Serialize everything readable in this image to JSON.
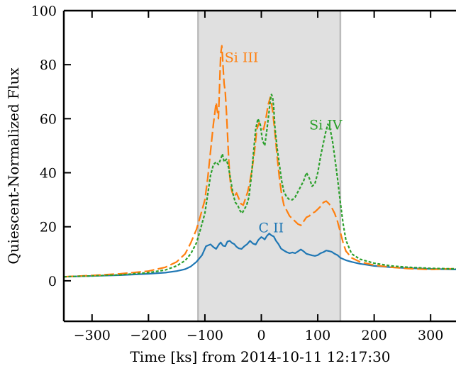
{
  "chart_data": {
    "type": "line",
    "title": "",
    "xlabel": "Time [ks] from 2014-10-11 12:17:30",
    "ylabel": "Quiescent-Normalized Flux",
    "xlim": [
      -350,
      345
    ],
    "ylim": [
      -15,
      100
    ],
    "xticks": [
      -300,
      -200,
      -100,
      0,
      100,
      200,
      300
    ],
    "xtick_labels": [
      "−300",
      "−200",
      "−100",
      "0",
      "100",
      "200",
      "300"
    ],
    "yticks": [
      0,
      20,
      40,
      60,
      80,
      100
    ],
    "ytick_labels": [
      "0",
      "20",
      "40",
      "60",
      "80",
      "100"
    ],
    "grid": false,
    "legend": "none",
    "shaded_region": {
      "x0": -112,
      "x1": 140,
      "color": "#e0e0e0",
      "edge_color": "#bbbbbb"
    },
    "series": [
      {
        "name": "C II",
        "color": "#1f77b4",
        "style": "solid",
        "label_at": [
          -5,
          18
        ],
        "x": [
          -350,
          -300,
          -250,
          -200,
          -170,
          -150,
          -135,
          -125,
          -115,
          -105,
          -98,
          -90,
          -85,
          -80,
          -75,
          -72,
          -68,
          -64,
          -60,
          -56,
          -52,
          -48,
          -44,
          -40,
          -35,
          -30,
          -25,
          -20,
          -15,
          -10,
          -5,
          0,
          3,
          6,
          10,
          14,
          18,
          22,
          26,
          30,
          35,
          40,
          45,
          50,
          55,
          60,
          65,
          70,
          75,
          80,
          85,
          90,
          95,
          100,
          105,
          110,
          115,
          120,
          125,
          130,
          135,
          140,
          150,
          160,
          175,
          200,
          230,
          260,
          300,
          345
        ],
        "y": [
          1.5,
          1.8,
          2.1,
          2.6,
          3.0,
          3.6,
          4.3,
          5.3,
          7.0,
          9.5,
          12.8,
          13.5,
          12.5,
          11.8,
          13.5,
          14.2,
          13.0,
          12.8,
          14.5,
          14.8,
          14.0,
          13.6,
          12.6,
          12.0,
          11.8,
          12.8,
          13.6,
          14.8,
          13.8,
          13.4,
          15.2,
          16.2,
          15.8,
          15.3,
          16.6,
          17.5,
          16.8,
          16.4,
          14.8,
          13.7,
          11.9,
          11.2,
          10.6,
          10.2,
          10.5,
          10.2,
          10.9,
          11.6,
          10.9,
          10.0,
          9.7,
          9.4,
          9.2,
          9.5,
          10.2,
          10.6,
          11.2,
          11.0,
          10.7,
          10.0,
          9.5,
          8.5,
          7.6,
          7.0,
          6.3,
          5.5,
          5.0,
          4.7,
          4.4,
          4.2
        ]
      },
      {
        "name": "Si III",
        "color": "#ff7f0e",
        "style": "dashed",
        "label_at": [
          -65,
          81
        ],
        "x": [
          -350,
          -300,
          -250,
          -200,
          -170,
          -150,
          -135,
          -125,
          -115,
          -108,
          -100,
          -95,
          -90,
          -85,
          -80,
          -78,
          -76,
          -74,
          -72,
          -70,
          -68,
          -66,
          -64,
          -62,
          -60,
          -58,
          -56,
          -54,
          -52,
          -48,
          -44,
          -40,
          -36,
          -32,
          -28,
          -24,
          -20,
          -16,
          -12,
          -8,
          -4,
          0,
          4,
          8,
          12,
          16,
          20,
          24,
          28,
          32,
          36,
          40,
          45,
          50,
          55,
          60,
          65,
          70,
          75,
          80,
          85,
          90,
          95,
          100,
          105,
          110,
          115,
          120,
          125,
          130,
          135,
          140,
          145,
          150,
          160,
          175,
          200,
          230,
          260,
          300,
          345
        ],
        "y": [
          1.5,
          2.0,
          2.6,
          3.6,
          5.0,
          7.0,
          10.0,
          14.0,
          19.0,
          24.0,
          30.0,
          38.0,
          48.0,
          58.0,
          66.0,
          63.0,
          60.0,
          72.0,
          84.0,
          87.0,
          80.0,
          73.0,
          70.0,
          63.0,
          55.0,
          46.0,
          39.0,
          35.0,
          33.0,
          31.0,
          32.5,
          30.5,
          28.5,
          28.0,
          30.5,
          33.0,
          37.0,
          42.0,
          48.0,
          56.0,
          58.5,
          57.0,
          56.0,
          60.0,
          65.0,
          68.0,
          63.0,
          55.0,
          46.0,
          38.0,
          32.0,
          28.0,
          26.0,
          24.0,
          23.0,
          22.0,
          21.0,
          20.5,
          22.0,
          23.5,
          24.0,
          25.0,
          25.5,
          26.5,
          27.5,
          29.0,
          29.5,
          28.5,
          27.0,
          25.0,
          22.0,
          18.0,
          14.0,
          11.0,
          8.5,
          7.0,
          5.8,
          5.0,
          4.5,
          4.2,
          4.5
        ]
      },
      {
        "name": "Si IV",
        "color": "#2ca02c",
        "style": "dotted",
        "label_at": [
          85,
          56
        ],
        "x": [
          -350,
          -300,
          -250,
          -200,
          -170,
          -150,
          -135,
          -125,
          -115,
          -108,
          -100,
          -95,
          -90,
          -85,
          -80,
          -76,
          -72,
          -69,
          -66,
          -62,
          -58,
          -54,
          -50,
          -46,
          -42,
          -38,
          -34,
          -30,
          -26,
          -22,
          -18,
          -14,
          -10,
          -6,
          -2,
          2,
          6,
          10,
          14,
          16,
          18,
          20,
          22,
          24,
          28,
          32,
          36,
          40,
          45,
          50,
          55,
          60,
          65,
          70,
          75,
          80,
          85,
          90,
          95,
          100,
          105,
          110,
          114,
          118,
          122,
          126,
          130,
          135,
          140,
          145,
          150,
          160,
          175,
          200,
          230,
          260,
          300,
          345
        ],
        "y": [
          1.5,
          1.8,
          2.2,
          3.0,
          4.0,
          5.5,
          7.5,
          10.0,
          14.0,
          19.0,
          25.0,
          32.0,
          39.0,
          43.0,
          44.0,
          43.0,
          45.0,
          47.0,
          44.0,
          45.0,
          42.0,
          37.0,
          32.0,
          29.0,
          28.0,
          26.0,
          25.0,
          26.5,
          28.0,
          31.0,
          38.0,
          47.0,
          56.0,
          60.0,
          58.0,
          52.0,
          50.0,
          56.0,
          63.0,
          67.0,
          69.0,
          68.0,
          64.0,
          57.0,
          49.0,
          43.0,
          37.0,
          33.0,
          31.0,
          30.0,
          30.0,
          31.0,
          33.0,
          35.0,
          37.0,
          40.0,
          38.0,
          35.0,
          36.0,
          40.0,
          46.0,
          51.0,
          55.0,
          58.0,
          56.0,
          52.0,
          46.0,
          38.0,
          29.0,
          21.0,
          15.0,
          10.0,
          8.0,
          6.5,
          5.5,
          5.0,
          4.6,
          4.4
        ]
      }
    ]
  }
}
